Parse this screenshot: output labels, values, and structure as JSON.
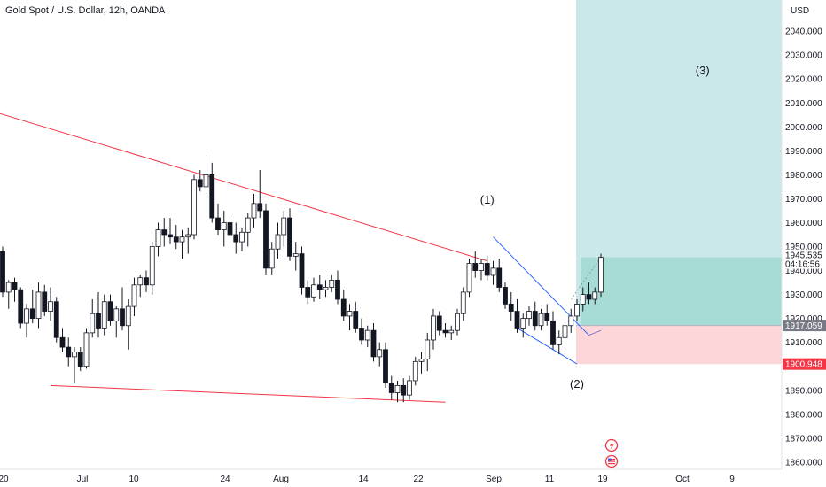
{
  "header": {
    "title": "Gold Spot / U.S. Dollar, 12h, OANDA"
  },
  "currency_button": {
    "label": "USD"
  },
  "colors": {
    "bull": "#ffffff",
    "bear": "#131722",
    "trendline": "#f23645",
    "wedge": "#2962ff",
    "target_zone": "#cbe8e8",
    "profit_zone": "#a6dcd4",
    "stop_zone": "#fcd6d8",
    "last_price_tag": "#ffffff",
    "entry_tag": "#787b86",
    "stop_tag": "#f23645"
  },
  "chart_data": {
    "type": "candlestick",
    "y_axis": {
      "ticks": [
        "1860.000",
        "1870.000",
        "1880.000",
        "1890.000",
        "1900.000",
        "1910.000",
        "1920.000",
        "1930.000",
        "1940.000",
        "1950.000",
        "1960.000",
        "1970.000",
        "1980.000",
        "1990.000",
        "2000.000",
        "2010.000",
        "2020.000",
        "2030.000",
        "2040.000"
      ],
      "range": [
        1857,
        2053
      ]
    },
    "x_axis": {
      "ticks": [
        "20",
        "Jul",
        "10",
        "24",
        "Aug",
        "14",
        "22",
        "Sep",
        "11",
        "19",
        "Oct",
        "9"
      ]
    },
    "candles": [
      {
        "o": 1948,
        "h": 1950,
        "l": 1929,
        "c": 1931
      },
      {
        "o": 1931,
        "h": 1936,
        "l": 1924,
        "c": 1935
      },
      {
        "o": 1935,
        "h": 1937,
        "l": 1927,
        "c": 1932
      },
      {
        "o": 1932,
        "h": 1933,
        "l": 1916,
        "c": 1918
      },
      {
        "o": 1918,
        "h": 1926,
        "l": 1912,
        "c": 1924
      },
      {
        "o": 1924,
        "h": 1932,
        "l": 1918,
        "c": 1920
      },
      {
        "o": 1920,
        "h": 1935,
        "l": 1916,
        "c": 1931
      },
      {
        "o": 1931,
        "h": 1934,
        "l": 1921,
        "c": 1923
      },
      {
        "o": 1923,
        "h": 1933,
        "l": 1919,
        "c": 1927
      },
      {
        "o": 1927,
        "h": 1929,
        "l": 1910,
        "c": 1912
      },
      {
        "o": 1912,
        "h": 1916,
        "l": 1906,
        "c": 1908
      },
      {
        "o": 1908,
        "h": 1912,
        "l": 1900,
        "c": 1904
      },
      {
        "o": 1904,
        "h": 1908,
        "l": 1893,
        "c": 1906
      },
      {
        "o": 1906,
        "h": 1908,
        "l": 1898,
        "c": 1900
      },
      {
        "o": 1900,
        "h": 1916,
        "l": 1899,
        "c": 1914
      },
      {
        "o": 1914,
        "h": 1928,
        "l": 1912,
        "c": 1922
      },
      {
        "o": 1922,
        "h": 1931,
        "l": 1912,
        "c": 1916
      },
      {
        "o": 1916,
        "h": 1930,
        "l": 1913,
        "c": 1927
      },
      {
        "o": 1927,
        "h": 1930,
        "l": 1917,
        "c": 1919
      },
      {
        "o": 1919,
        "h": 1925,
        "l": 1912,
        "c": 1924
      },
      {
        "o": 1924,
        "h": 1933,
        "l": 1915,
        "c": 1917
      },
      {
        "o": 1917,
        "h": 1928,
        "l": 1907,
        "c": 1925
      },
      {
        "o": 1925,
        "h": 1937,
        "l": 1921,
        "c": 1934
      },
      {
        "o": 1934,
        "h": 1938,
        "l": 1929,
        "c": 1937
      },
      {
        "o": 1937,
        "h": 1940,
        "l": 1931,
        "c": 1934
      },
      {
        "o": 1934,
        "h": 1952,
        "l": 1930,
        "c": 1950
      },
      {
        "o": 1950,
        "h": 1960,
        "l": 1946,
        "c": 1957
      },
      {
        "o": 1957,
        "h": 1962,
        "l": 1950,
        "c": 1955
      },
      {
        "o": 1955,
        "h": 1962,
        "l": 1951,
        "c": 1954
      },
      {
        "o": 1954,
        "h": 1959,
        "l": 1949,
        "c": 1952
      },
      {
        "o": 1952,
        "h": 1957,
        "l": 1945,
        "c": 1954
      },
      {
        "o": 1954,
        "h": 1958,
        "l": 1947,
        "c": 1955
      },
      {
        "o": 1955,
        "h": 1980,
        "l": 1953,
        "c": 1978
      },
      {
        "o": 1978,
        "h": 1982,
        "l": 1973,
        "c": 1975
      },
      {
        "o": 1975,
        "h": 1988,
        "l": 1972,
        "c": 1980
      },
      {
        "o": 1980,
        "h": 1985,
        "l": 1960,
        "c": 1962
      },
      {
        "o": 1962,
        "h": 1968,
        "l": 1955,
        "c": 1957
      },
      {
        "o": 1957,
        "h": 1965,
        "l": 1950,
        "c": 1960
      },
      {
        "o": 1960,
        "h": 1963,
        "l": 1953,
        "c": 1955
      },
      {
        "o": 1955,
        "h": 1960,
        "l": 1947,
        "c": 1952
      },
      {
        "o": 1952,
        "h": 1958,
        "l": 1948,
        "c": 1956
      },
      {
        "o": 1956,
        "h": 1964,
        "l": 1950,
        "c": 1962
      },
      {
        "o": 1962,
        "h": 1972,
        "l": 1958,
        "c": 1968
      },
      {
        "o": 1968,
        "h": 1982,
        "l": 1962,
        "c": 1965
      },
      {
        "o": 1965,
        "h": 1968,
        "l": 1938,
        "c": 1941
      },
      {
        "o": 1941,
        "h": 1952,
        "l": 1938,
        "c": 1949
      },
      {
        "o": 1949,
        "h": 1960,
        "l": 1945,
        "c": 1955
      },
      {
        "o": 1955,
        "h": 1965,
        "l": 1950,
        "c": 1962
      },
      {
        "o": 1962,
        "h": 1966,
        "l": 1944,
        "c": 1946
      },
      {
        "o": 1946,
        "h": 1952,
        "l": 1940,
        "c": 1947
      },
      {
        "o": 1947,
        "h": 1950,
        "l": 1930,
        "c": 1933
      },
      {
        "o": 1933,
        "h": 1936,
        "l": 1926,
        "c": 1929
      },
      {
        "o": 1929,
        "h": 1937,
        "l": 1927,
        "c": 1934
      },
      {
        "o": 1934,
        "h": 1938,
        "l": 1928,
        "c": 1932
      },
      {
        "o": 1932,
        "h": 1936,
        "l": 1929,
        "c": 1933
      },
      {
        "o": 1933,
        "h": 1938,
        "l": 1931,
        "c": 1936
      },
      {
        "o": 1936,
        "h": 1940,
        "l": 1926,
        "c": 1928
      },
      {
        "o": 1928,
        "h": 1932,
        "l": 1919,
        "c": 1921
      },
      {
        "o": 1921,
        "h": 1926,
        "l": 1915,
        "c": 1923
      },
      {
        "o": 1923,
        "h": 1927,
        "l": 1914,
        "c": 1916
      },
      {
        "o": 1916,
        "h": 1920,
        "l": 1909,
        "c": 1911
      },
      {
        "o": 1911,
        "h": 1917,
        "l": 1908,
        "c": 1915
      },
      {
        "o": 1915,
        "h": 1918,
        "l": 1902,
        "c": 1904
      },
      {
        "o": 1904,
        "h": 1910,
        "l": 1900,
        "c": 1907
      },
      {
        "o": 1907,
        "h": 1910,
        "l": 1891,
        "c": 1893
      },
      {
        "o": 1893,
        "h": 1896,
        "l": 1886,
        "c": 1889
      },
      {
        "o": 1889,
        "h": 1894,
        "l": 1885,
        "c": 1892
      },
      {
        "o": 1892,
        "h": 1895,
        "l": 1885,
        "c": 1888
      },
      {
        "o": 1888,
        "h": 1896,
        "l": 1886,
        "c": 1894
      },
      {
        "o": 1894,
        "h": 1904,
        "l": 1892,
        "c": 1902
      },
      {
        "o": 1902,
        "h": 1906,
        "l": 1897,
        "c": 1903
      },
      {
        "o": 1903,
        "h": 1914,
        "l": 1898,
        "c": 1911
      },
      {
        "o": 1911,
        "h": 1924,
        "l": 1907,
        "c": 1921
      },
      {
        "o": 1921,
        "h": 1923,
        "l": 1913,
        "c": 1915
      },
      {
        "o": 1915,
        "h": 1918,
        "l": 1912,
        "c": 1914
      },
      {
        "o": 1914,
        "h": 1917,
        "l": 1911,
        "c": 1915
      },
      {
        "o": 1915,
        "h": 1924,
        "l": 1913,
        "c": 1922
      },
      {
        "o": 1922,
        "h": 1933,
        "l": 1919,
        "c": 1931
      },
      {
        "o": 1931,
        "h": 1945,
        "l": 1929,
        "c": 1943
      },
      {
        "o": 1943,
        "h": 1948,
        "l": 1937,
        "c": 1940
      },
      {
        "o": 1940,
        "h": 1945,
        "l": 1936,
        "c": 1943
      },
      {
        "o": 1943,
        "h": 1946,
        "l": 1936,
        "c": 1938
      },
      {
        "o": 1938,
        "h": 1944,
        "l": 1934,
        "c": 1941
      },
      {
        "o": 1941,
        "h": 1945,
        "l": 1931,
        "c": 1933
      },
      {
        "o": 1933,
        "h": 1935,
        "l": 1924,
        "c": 1926
      },
      {
        "o": 1926,
        "h": 1931,
        "l": 1919,
        "c": 1923
      },
      {
        "o": 1923,
        "h": 1928,
        "l": 1914,
        "c": 1916
      },
      {
        "o": 1916,
        "h": 1922,
        "l": 1912,
        "c": 1920
      },
      {
        "o": 1920,
        "h": 1925,
        "l": 1917,
        "c": 1923
      },
      {
        "o": 1923,
        "h": 1927,
        "l": 1915,
        "c": 1917
      },
      {
        "o": 1917,
        "h": 1924,
        "l": 1915,
        "c": 1922
      },
      {
        "o": 1922,
        "h": 1926,
        "l": 1917,
        "c": 1919
      },
      {
        "o": 1919,
        "h": 1923,
        "l": 1907,
        "c": 1909
      },
      {
        "o": 1909,
        "h": 1915,
        "l": 1905,
        "c": 1912
      },
      {
        "o": 1912,
        "h": 1919,
        "l": 1907,
        "c": 1917
      },
      {
        "o": 1917,
        "h": 1924,
        "l": 1914,
        "c": 1921
      },
      {
        "o": 1921,
        "h": 1928,
        "l": 1919,
        "c": 1926
      },
      {
        "o": 1926,
        "h": 1933,
        "l": 1923,
        "c": 1930
      },
      {
        "o": 1930,
        "h": 1935,
        "l": 1926,
        "c": 1928
      },
      {
        "o": 1928,
        "h": 1933,
        "l": 1926,
        "c": 1931
      },
      {
        "o": 1931,
        "h": 1947,
        "l": 1929,
        "c": 1945.5
      }
    ],
    "trendlines": [
      {
        "name": "upper-resistance",
        "from": {
          "i": -1,
          "p": 2006
        },
        "to": {
          "i": 81,
          "p": 1944
        }
      },
      {
        "name": "lower-support",
        "from": {
          "i": 8,
          "p": 1892
        },
        "to": {
          "i": 74,
          "p": 1885
        }
      }
    ],
    "wedge": [
      {
        "from": {
          "i": 82,
          "p": 1954
        },
        "to": {
          "i": 98,
          "p": 1913
        }
      },
      {
        "from": {
          "i": 86,
          "p": 1916
        },
        "to": {
          "i": 96,
          "p": 1901
        }
      }
    ],
    "position": {
      "entry": 1917.059,
      "stop": 1900.948,
      "target": 2053,
      "current": 1945.535
    },
    "annotations": [
      {
        "text": "(1)",
        "i": 81,
        "p": 1968
      },
      {
        "text": "(2)",
        "i": 96,
        "p": 1891
      },
      {
        "text": "(3)",
        "i": 117,
        "p": 2022
      }
    ],
    "price_tags": {
      "last": "1945.535",
      "countdown": "04:16:56",
      "entry": "1917.059",
      "stop": "1900.948"
    }
  }
}
